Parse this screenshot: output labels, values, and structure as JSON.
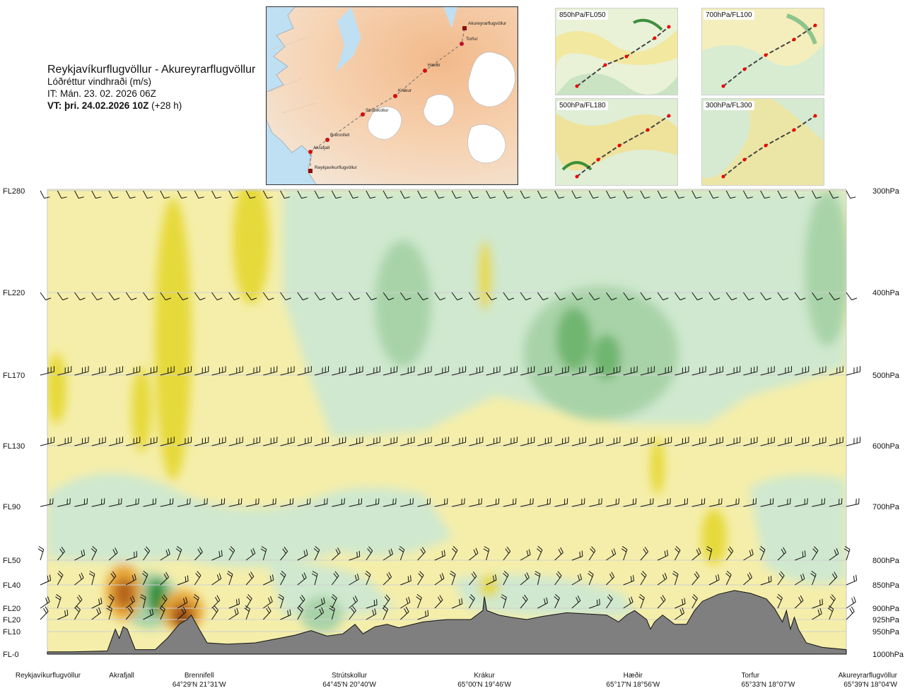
{
  "header": {
    "title": "Reykjavíkurflugvöllur - Akureyrarflugvöllur",
    "subtitle": "Lóðréttur vindhraði (m/s)",
    "it": "IT: Mán. 23. 02. 2026 06Z",
    "vt_bold": "VT: þri. 24.02.2026 10Z",
    "vt_rest": " (+28 h)"
  },
  "map": {
    "points": [
      {
        "label": "Akureyrarflugvöllur",
        "kind": "airport"
      },
      {
        "label": "Torfur",
        "kind": "waypoint"
      },
      {
        "label": "Hæðir",
        "kind": "waypoint"
      },
      {
        "label": "Krákur",
        "kind": "waypoint"
      },
      {
        "label": "Strútskollur",
        "kind": "waypoint"
      },
      {
        "label": "Brennifell",
        "kind": "waypoint"
      },
      {
        "label": "Akrafjall",
        "kind": "waypoint"
      },
      {
        "label": "Reykjavíkurflugvöllur",
        "kind": "airport"
      }
    ]
  },
  "thumbnails": [
    {
      "label": "850hPa/FL050"
    },
    {
      "label": "700hPa/FL100"
    },
    {
      "label": "500hPa/FL180"
    },
    {
      "label": "300hPa/FL300"
    }
  ],
  "chart_data": {
    "type": "heatmap",
    "title": "Reykjavíkurflugvöllur - Akureyrarflugvöllur",
    "variable": "Lóðréttur vindhraði (m/s)",
    "colors": {
      "yellow_light": "#f5eeaa",
      "yellow": "#ede26a",
      "yellow_strong": "#e6d93a",
      "orange": "#e9a93a",
      "brown": "#b5651d",
      "brown_dark": "#7e3a12",
      "green_faint": "#eef8e6",
      "green_light": "#cfe8cf",
      "green_mid": "#a8d3a8",
      "green_strong": "#6fb56f",
      "green_dark": "#2f8f3a",
      "terrain": "#7f7f7f",
      "grid": "#cccccc"
    },
    "left_axis": [
      {
        "label": "FL280",
        "hpa": 300
      },
      {
        "label": "FL220",
        "hpa": 400
      },
      {
        "label": "FL170",
        "hpa": 500
      },
      {
        "label": "FL130",
        "hpa": 600
      },
      {
        "label": "FL90",
        "hpa": 700
      },
      {
        "label": "FL50",
        "hpa": 800
      },
      {
        "label": "FL40",
        "hpa": 850
      },
      {
        "label": "FL20",
        "hpa": 900
      },
      {
        "label": "FL20",
        "hpa": 925
      },
      {
        "label": "FL10",
        "hpa": 950
      },
      {
        "label": "FL-0",
        "hpa": 1000
      }
    ],
    "right_axis": [
      "300hPa",
      "400hPa",
      "500hPa",
      "600hPa",
      "700hPa",
      "800hPa",
      "850hPa",
      "900hPa",
      "925hPa",
      "950hPa",
      "1000hPa"
    ],
    "x_locations": [
      {
        "name": "Reykjavíkurflugvöllur",
        "coord": "",
        "frac": 0.0
      },
      {
        "name": "Akrafjall",
        "coord": "",
        "frac": 0.093
      },
      {
        "name": "Brennifell",
        "coord": "64°29'N 21°31'W",
        "frac": 0.19
      },
      {
        "name": "Strútskollur",
        "coord": "64°45'N 20°40'W",
        "frac": 0.378
      },
      {
        "name": "Krákur",
        "coord": "65°00'N 19°46'W",
        "frac": 0.547
      },
      {
        "name": "Hæðir",
        "coord": "65°17'N 18°56'W",
        "frac": 0.733
      },
      {
        "name": "Torfur",
        "coord": "65°33'N 18°07'W",
        "frac": 0.935
      },
      {
        "name": "Akureyrarflugvöllur",
        "coord": "65°39'N 18°04'W",
        "frac": 1.0
      }
    ],
    "terrain_hpa": [
      [
        0.0,
        995
      ],
      [
        0.03,
        995
      ],
      [
        0.075,
        993
      ],
      [
        0.085,
        945
      ],
      [
        0.09,
        965
      ],
      [
        0.095,
        940
      ],
      [
        0.1,
        945
      ],
      [
        0.11,
        990
      ],
      [
        0.135,
        990
      ],
      [
        0.15,
        965
      ],
      [
        0.165,
        935
      ],
      [
        0.175,
        925
      ],
      [
        0.18,
        915
      ],
      [
        0.19,
        945
      ],
      [
        0.2,
        975
      ],
      [
        0.225,
        978
      ],
      [
        0.26,
        975
      ],
      [
        0.29,
        965
      ],
      [
        0.31,
        958
      ],
      [
        0.33,
        948
      ],
      [
        0.35,
        960
      ],
      [
        0.37,
        955
      ],
      [
        0.385,
        935
      ],
      [
        0.395,
        955
      ],
      [
        0.41,
        940
      ],
      [
        0.425,
        935
      ],
      [
        0.44,
        942
      ],
      [
        0.47,
        930
      ],
      [
        0.5,
        925
      ],
      [
        0.53,
        925
      ],
      [
        0.545,
        905
      ],
      [
        0.547,
        875
      ],
      [
        0.55,
        905
      ],
      [
        0.565,
        915
      ],
      [
        0.58,
        920
      ],
      [
        0.6,
        925
      ],
      [
        0.62,
        918
      ],
      [
        0.65,
        910
      ],
      [
        0.7,
        915
      ],
      [
        0.715,
        930
      ],
      [
        0.725,
        915
      ],
      [
        0.735,
        905
      ],
      [
        0.75,
        925
      ],
      [
        0.755,
        945
      ],
      [
        0.76,
        930
      ],
      [
        0.77,
        915
      ],
      [
        0.785,
        935
      ],
      [
        0.8,
        935
      ],
      [
        0.81,
        905
      ],
      [
        0.82,
        885
      ],
      [
        0.84,
        870
      ],
      [
        0.86,
        862
      ],
      [
        0.88,
        868
      ],
      [
        0.9,
        880
      ],
      [
        0.91,
        900
      ],
      [
        0.92,
        930
      ],
      [
        0.925,
        905
      ],
      [
        0.93,
        945
      ],
      [
        0.935,
        920
      ],
      [
        0.94,
        945
      ],
      [
        0.95,
        975
      ],
      [
        0.97,
        985
      ],
      [
        1.0,
        990
      ]
    ],
    "wind_barb_levels_hpa": [
      300,
      400,
      500,
      600,
      700,
      800,
      850,
      900,
      925
    ],
    "ylim_hpa": [
      300,
      1000
    ],
    "grid": "horizontal"
  }
}
